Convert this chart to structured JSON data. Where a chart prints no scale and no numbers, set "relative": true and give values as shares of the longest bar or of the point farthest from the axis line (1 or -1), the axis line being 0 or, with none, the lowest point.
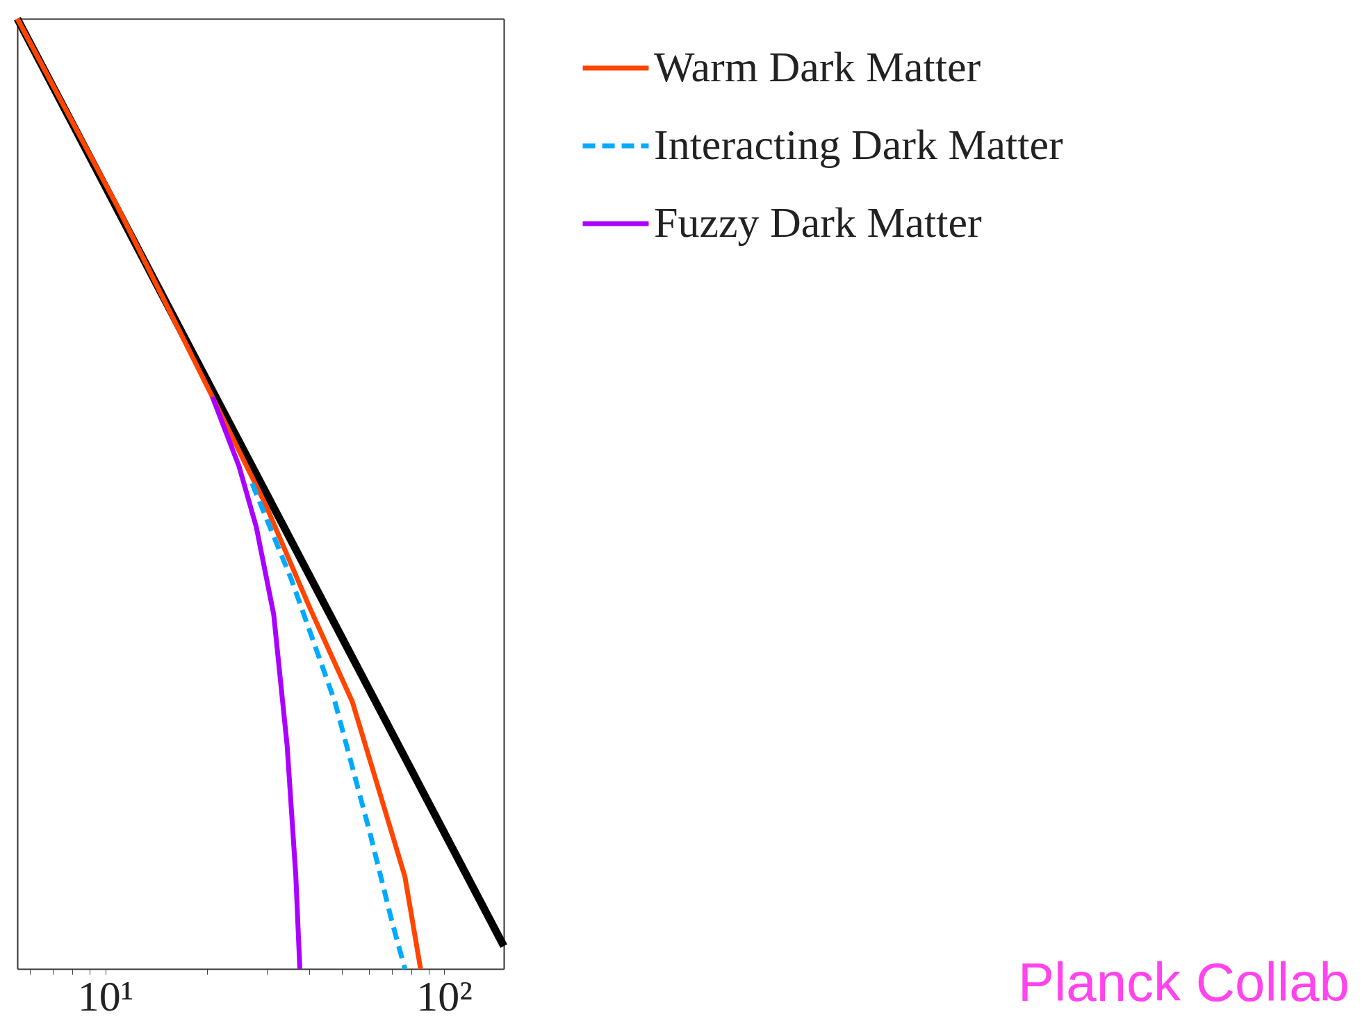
{
  "chart_data": {
    "type": "line",
    "relative": true,
    "log": "x",
    "xlim": [
      5.5,
      150
    ],
    "xticks": [
      {
        "value": 6,
        "label": null
      },
      {
        "value": 7,
        "label": null
      },
      {
        "value": 8,
        "label": null
      },
      {
        "value": 9,
        "label": null
      },
      {
        "value": 10,
        "label": "10¹"
      },
      {
        "value": 20,
        "label": null
      },
      {
        "value": 30,
        "label": null
      },
      {
        "value": 40,
        "label": null
      },
      {
        "value": 50,
        "label": null
      },
      {
        "value": 60,
        "label": null
      },
      {
        "value": 70,
        "label": null
      },
      {
        "value": 80,
        "label": null
      },
      {
        "value": 90,
        "label": null
      },
      {
        "value": 100,
        "label": "10²"
      }
    ],
    "tick_labels": "x",
    "grid": false,
    "legend": "top right",
    "series": [
      {
        "color": "#000000",
        "line_style": "solid",
        "x": [
          5.5,
          150
        ],
        "values": [
          1,
          0.024
        ]
      },
      {
        "name": "Warm Dark Matter",
        "color": "#ff4500",
        "line_style": "solid",
        "x": [
          5.5,
          10.8,
          20.7,
          29.6,
          39.9,
          53.6,
          64.1,
          76.6,
          85.2
        ],
        "values": [
          1,
          0.804,
          0.602,
          0.49,
          0.382,
          0.281,
          0.189,
          0.097,
          0
        ]
      },
      {
        "name": "Interacting Dark Matter",
        "color": "#00aaff",
        "line_style": "dashed",
        "x": [
          27.1,
          35.4,
          47.6,
          60.4,
          70.0,
          76.6
        ],
        "values": [
          0.511,
          0.41,
          0.281,
          0.143,
          0.051,
          0
        ]
      },
      {
        "name": "Fuzzy Dark Matter",
        "color": "#aa00ff",
        "line_style": "solid",
        "x": [
          20.7,
          24.8,
          27.9,
          31.4,
          34.4,
          36.5,
          37.5
        ],
        "values": [
          0.602,
          0.529,
          0.465,
          0.373,
          0.235,
          0.097,
          0
        ]
      }
    ],
    "annotations": [
      "Planck Collab"
    ]
  }
}
